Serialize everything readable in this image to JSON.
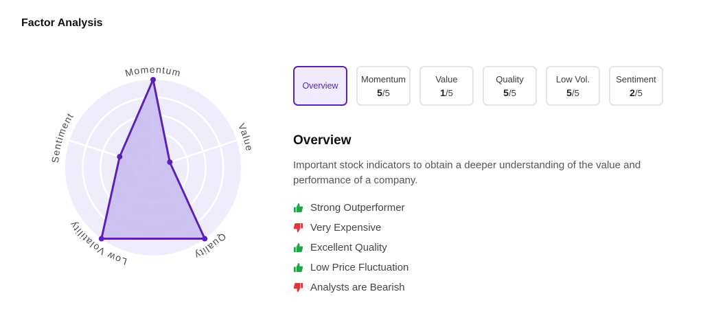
{
  "section": {
    "title": "Factor Analysis"
  },
  "radar": {
    "max": 5,
    "rings": 5,
    "axes": [
      {
        "label": "Momentum",
        "value": 5
      },
      {
        "label": "Value",
        "value": 1
      },
      {
        "label": "Quality",
        "value": 5
      },
      {
        "label": "Low Volatility",
        "value": 5
      },
      {
        "label": "Sentiment",
        "value": 2
      }
    ],
    "colors": {
      "disc": "#efedfc",
      "grid": "#ffffff",
      "fill": "#c7b8f0",
      "stroke": "#5b21b6",
      "label": "#4a4a52"
    }
  },
  "tabs": [
    {
      "label": "Overview",
      "score": "",
      "max": "",
      "active": true
    },
    {
      "label": "Momentum",
      "score": "5",
      "max": "/5",
      "active": false
    },
    {
      "label": "Value",
      "score": "1",
      "max": "/5",
      "active": false
    },
    {
      "label": "Quality",
      "score": "5",
      "max": "/5",
      "active": false
    },
    {
      "label": "Low Vol.",
      "score": "5",
      "max": "/5",
      "active": false
    },
    {
      "label": "Sentiment",
      "score": "2",
      "max": "/5",
      "active": false
    }
  ],
  "overview": {
    "title": "Overview",
    "description": "Important stock indicators to obtain a deeper understanding of the value and performance of a company."
  },
  "insights": [
    {
      "text": "Strong Outperformer",
      "sentiment": "positive",
      "icon": "thumbs-up-icon",
      "color": "#22a447"
    },
    {
      "text": "Very Expensive",
      "sentiment": "negative",
      "icon": "thumbs-down-icon",
      "color": "#e0353a"
    },
    {
      "text": "Excellent Quality",
      "sentiment": "positive",
      "icon": "thumbs-up-icon",
      "color": "#22a447"
    },
    {
      "text": "Low Price Fluctuation",
      "sentiment": "positive",
      "icon": "thumbs-up-icon",
      "color": "#22a447"
    },
    {
      "text": "Analysts are Bearish",
      "sentiment": "negative",
      "icon": "thumbs-down-icon",
      "color": "#e0353a"
    }
  ]
}
